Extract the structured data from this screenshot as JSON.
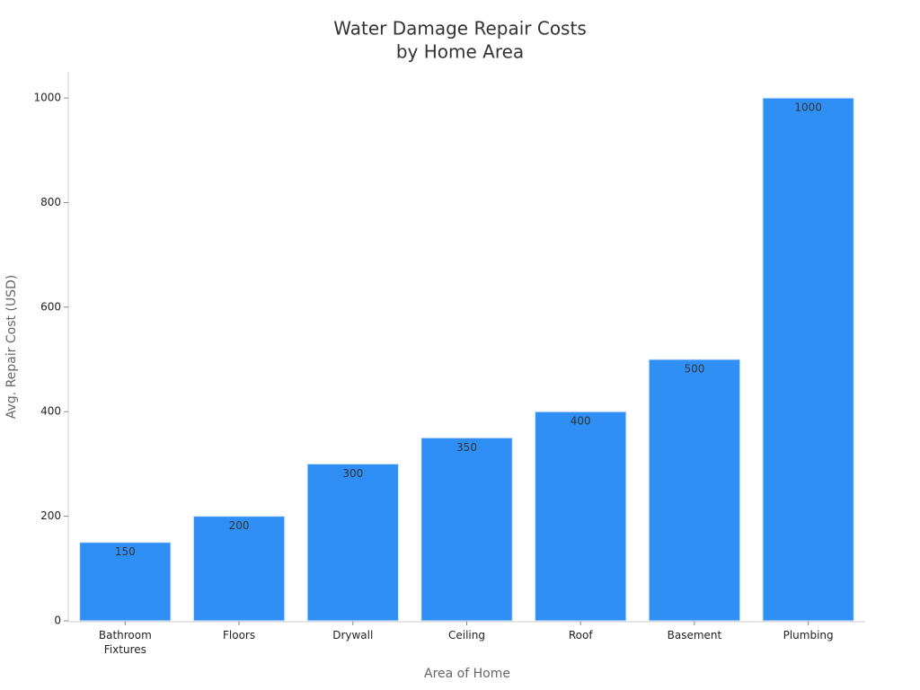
{
  "chart_data": {
    "type": "bar",
    "title": [
      "Water Damage Repair Costs",
      "by Home Area"
    ],
    "x_label": "Area of Home",
    "y_label": "Avg. Repair Cost (USD)",
    "categories": [
      "Bathroom Fixtures",
      "Floors",
      "Drywall",
      "Ceiling",
      "Roof",
      "Basement",
      "Plumbing"
    ],
    "values": [
      150,
      200,
      300,
      350,
      400,
      500,
      1000
    ],
    "color": "#2f8ff5",
    "ylim": [
      0,
      1050
    ],
    "yticks": [
      0,
      200,
      400,
      600,
      800,
      1000
    ],
    "grid": false
  }
}
